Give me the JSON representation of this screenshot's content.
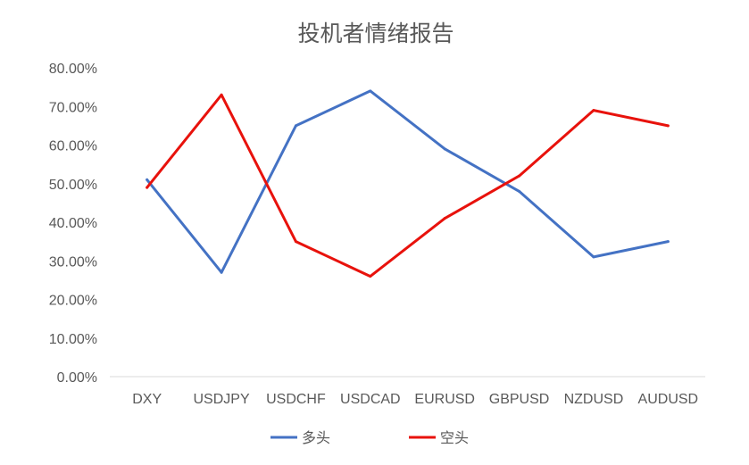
{
  "chart_data": {
    "type": "line",
    "title": "投机者情绪报告",
    "xlabel": "",
    "ylabel": "",
    "categories": [
      "DXY",
      "USDJPY",
      "USDCHF",
      "USDCAD",
      "EURUSD",
      "GBPUSD",
      "NZDUSD",
      "AUDUSD"
    ],
    "yticks": [
      "0.00%",
      "10.00%",
      "20.00%",
      "30.00%",
      "40.00%",
      "50.00%",
      "60.00%",
      "70.00%",
      "80.00%"
    ],
    "ylim": [
      0,
      80
    ],
    "y_unit": "%",
    "grid": "horizontal-baseline-only",
    "legend_position": "bottom",
    "series": [
      {
        "name": "多头",
        "color": "#4472C4",
        "values": [
          51,
          27,
          65,
          74,
          59,
          48,
          31,
          35
        ]
      },
      {
        "name": "空头",
        "color": "#E8120C",
        "values": [
          49,
          73,
          35,
          26,
          41,
          52,
          69,
          65
        ]
      }
    ]
  }
}
